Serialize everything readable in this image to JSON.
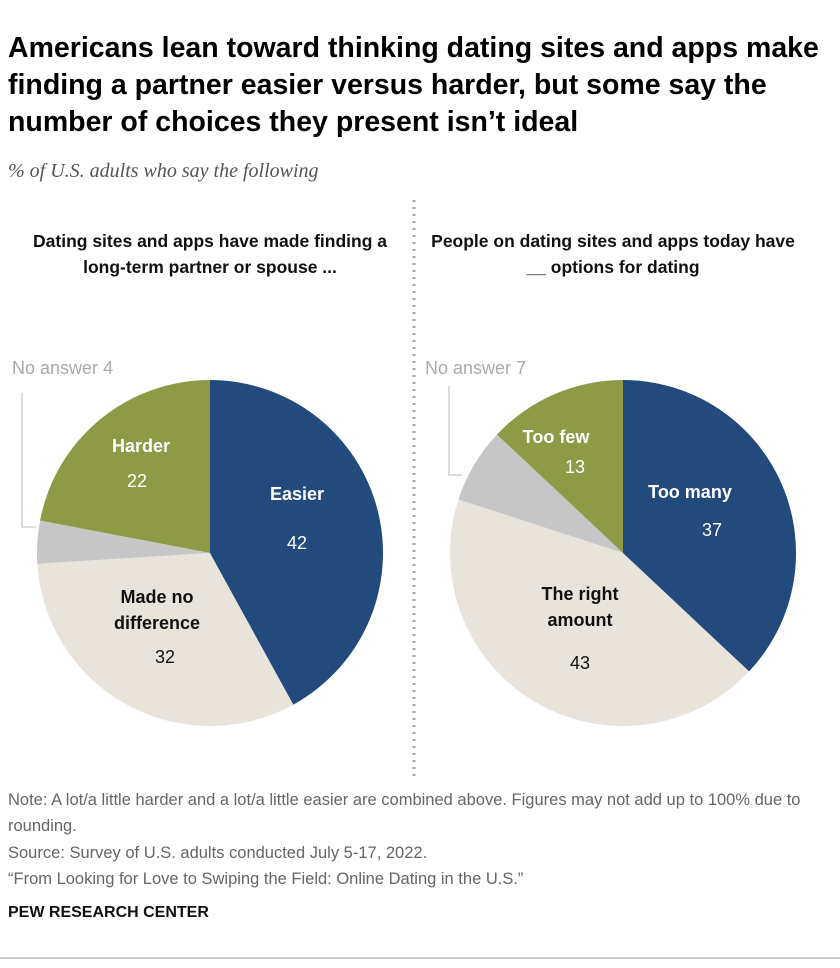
{
  "title": "Americans lean toward thinking dating sites and apps make finding a partner easier versus harder, but some say the number of choices they present isn’t ideal",
  "subtitle": "% of U.S. adults who say the following",
  "chart_data": [
    {
      "type": "pie",
      "title": "Dating sites and apps have made finding a long-term partner or spouse ...",
      "categories": [
        "Easier",
        "Made no difference",
        "No answer",
        "Harder"
      ],
      "values": [
        42,
        32,
        4,
        22
      ],
      "colors": [
        "#234a7c",
        "#e8e4dc",
        "#c6c6c6",
        "#8e9a46"
      ]
    },
    {
      "type": "pie",
      "title": "People on dating sites and apps today have __ options for dating",
      "categories": [
        "Too many",
        "The right amount",
        "No answer",
        "Too few"
      ],
      "values": [
        37,
        43,
        7,
        13
      ],
      "colors": [
        "#234a7c",
        "#e8e4dc",
        "#c6c6c6",
        "#8e9a46"
      ]
    }
  ],
  "note": "Note: A lot/a little harder and a lot/a little easier are combined above. Figures may not add up to 100% due to rounding.",
  "source": "Source: Survey of U.S. adults conducted July 5-17, 2022.",
  "report": "“From Looking for Love to Swiping the Field: Online Dating in the U.S.”",
  "brand": "PEW RESEARCH CENTER"
}
